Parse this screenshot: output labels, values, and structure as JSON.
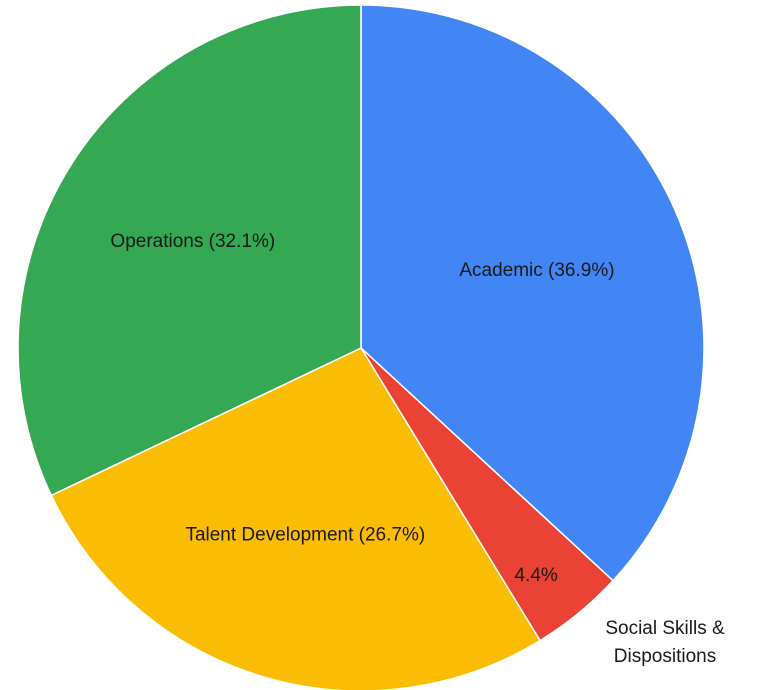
{
  "chart_data": {
    "type": "pie",
    "start_angle_deg": 0,
    "direction": "clockwise",
    "slices": [
      {
        "name": "Academic",
        "value": 36.9,
        "label": "Academic (36.9%)",
        "color": "#4285F4",
        "label_position": "inside"
      },
      {
        "name": "Social Skills & Dispositions",
        "value": 4.4,
        "label": "4.4%",
        "color": "#EA4335",
        "label_position": "inside",
        "outside_label": [
          "Social Skills &",
          "Dispositions"
        ]
      },
      {
        "name": "Talent Development",
        "value": 26.7,
        "label": "Talent Development (26.7%)",
        "color": "#FBBC04",
        "label_position": "inside"
      },
      {
        "name": "Operations",
        "value": 32.1,
        "label": "Operations (32.1%)",
        "color": "#34A853",
        "label_position": "inside"
      }
    ],
    "slice_border_color": "#ffffff"
  }
}
